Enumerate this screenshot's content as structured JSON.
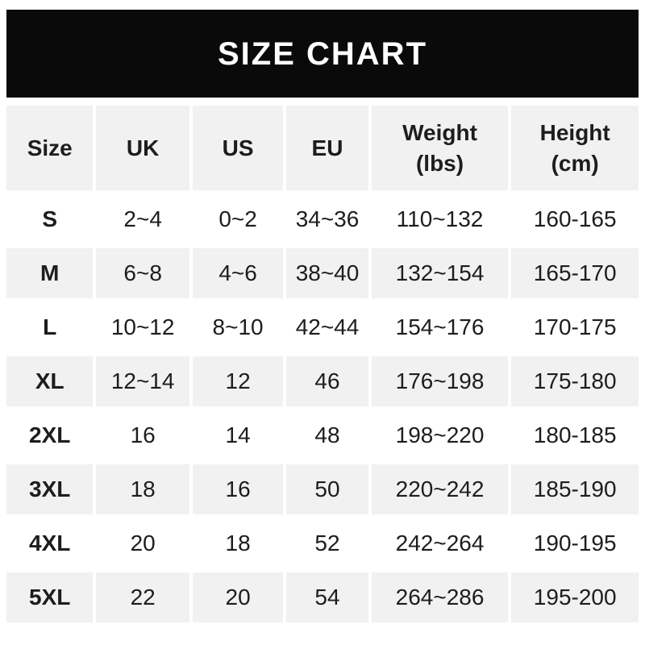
{
  "banner": {
    "title": "SIZE CHART",
    "bg": "#0a0a0a",
    "text_color": "#ffffff"
  },
  "colors": {
    "page_bg": "#ffffff",
    "row_alt": "#f1f1f1",
    "row_main": "#ffffff",
    "text": "#1d1d1f"
  },
  "chart_data": {
    "type": "table",
    "title": "SIZE CHART",
    "columns": [
      "Size",
      "UK",
      "US",
      "EU",
      "Weight\n(lbs)",
      "Height\n(cm)"
    ],
    "rows": [
      [
        "S",
        "2~4",
        "0~2",
        "34~36",
        "110~132",
        "160-165"
      ],
      [
        "M",
        "6~8",
        "4~6",
        "38~40",
        "132~154",
        "165-170"
      ],
      [
        "L",
        "10~12",
        "8~10",
        "42~44",
        "154~176",
        "170-175"
      ],
      [
        "XL",
        "12~14",
        "12",
        "46",
        "176~198",
        "175-180"
      ],
      [
        "2XL",
        "16",
        "14",
        "48",
        "198~220",
        "180-185"
      ],
      [
        "3XL",
        "18",
        "16",
        "50",
        "220~242",
        "185-190"
      ],
      [
        "4XL",
        "20",
        "18",
        "52",
        "242~264",
        "190-195"
      ],
      [
        "5XL",
        "22",
        "20",
        "54",
        "264~286",
        "195-200"
      ]
    ],
    "layout": {
      "header_row_shaded": true,
      "zebra_striping": "header gray, body rows alternate white/gray starting white",
      "range_separator_body": "~",
      "range_separator_height_col": "-"
    }
  }
}
